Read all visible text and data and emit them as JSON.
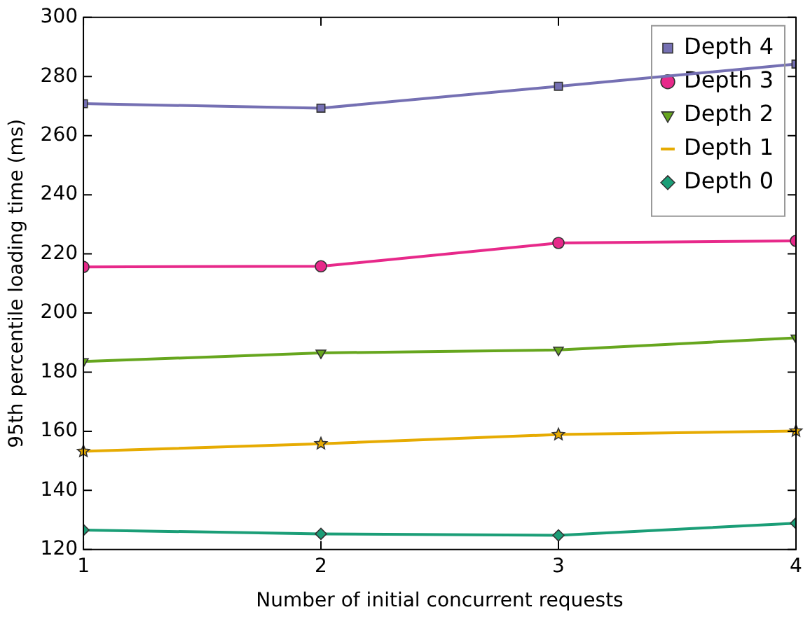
{
  "chart_data": {
    "type": "line",
    "xlabel": "Number of initial concurrent requests",
    "ylabel": "95th percentile loading time (ms)",
    "x": [
      1,
      2,
      3,
      4
    ],
    "xlim": [
      1,
      4
    ],
    "xticks": [
      1,
      2,
      3,
      4
    ],
    "ylim": [
      120,
      300
    ],
    "yticks": [
      120,
      140,
      160,
      180,
      200,
      220,
      240,
      260,
      280,
      300
    ],
    "grid": false,
    "legend": "top right",
    "line_style": "solid",
    "series": [
      {
        "name": "Depth 4",
        "color": "#7570b3",
        "marker": "square",
        "values": [
          270.8,
          269.3,
          276.7,
          284.2
        ]
      },
      {
        "name": "Depth 3",
        "color": "#e7298a",
        "marker": "circle",
        "values": [
          215.6,
          215.8,
          223.7,
          224.4
        ]
      },
      {
        "name": "Depth 2",
        "color": "#66a61e",
        "marker": "triangle",
        "values": [
          183.6,
          186.5,
          187.5,
          191.6
        ]
      },
      {
        "name": "Depth 1",
        "color": "#e6ab02",
        "marker": "star",
        "values": [
          153.2,
          155.8,
          158.9,
          160.1
        ]
      },
      {
        "name": "Depth 0",
        "color": "#1b9e77",
        "marker": "diamond",
        "values": [
          126.6,
          125.3,
          124.8,
          128.9
        ]
      }
    ]
  }
}
